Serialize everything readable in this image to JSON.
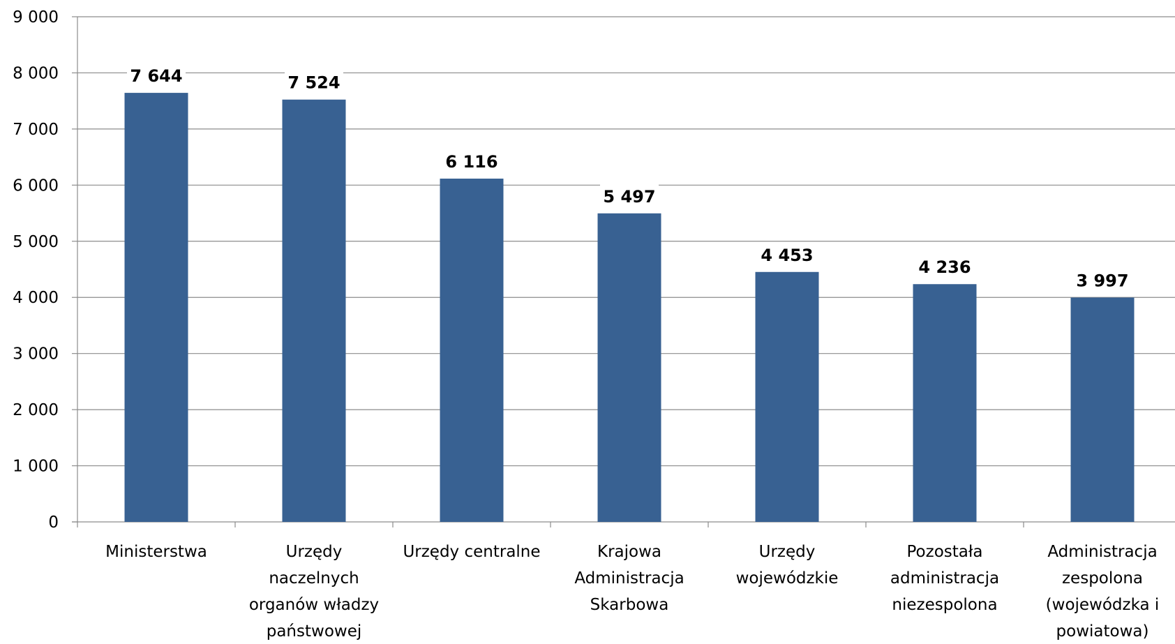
{
  "chart_data": {
    "type": "bar",
    "title": "",
    "xlabel": "",
    "ylabel": "",
    "ylim": [
      0,
      9000
    ],
    "yticks": [
      0,
      1000,
      2000,
      3000,
      4000,
      5000,
      6000,
      7000,
      8000,
      9000
    ],
    "ytick_labels": [
      "0",
      "1 000",
      "2 000",
      "3 000",
      "4 000",
      "5 000",
      "6 000",
      "7 000",
      "8 000",
      "9 000"
    ],
    "grid": true,
    "bar_color": "#386192",
    "categories": [
      [
        "Ministerstwa"
      ],
      [
        "Urzędy",
        "naczelnych",
        "organów władzy",
        "państwowej"
      ],
      [
        "Urzędy centralne"
      ],
      [
        "Krajowa",
        "Administracja",
        "Skarbowa"
      ],
      [
        "Urzędy",
        "wojewódzkie"
      ],
      [
        "Pozostała",
        "administracja",
        "niezespolona"
      ],
      [
        "Administracja",
        "zespolona",
        "(wojewódzka i",
        "powiatowa)"
      ]
    ],
    "values": [
      7644,
      7524,
      6116,
      5497,
      4453,
      4236,
      3997
    ],
    "value_labels": [
      "7 644",
      "7 524",
      "6 116",
      "5 497",
      "4 453",
      "4 236",
      "3 997"
    ]
  }
}
